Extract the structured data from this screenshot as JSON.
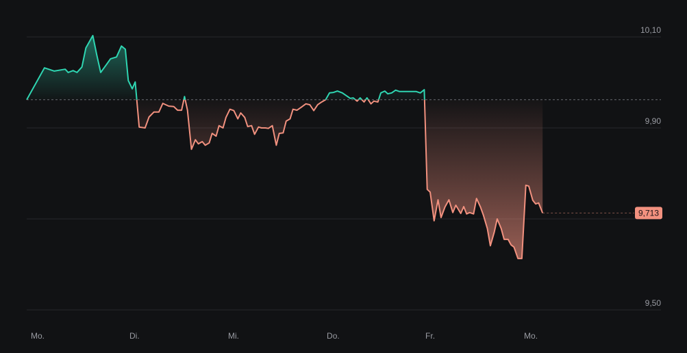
{
  "chart_data": {
    "type": "line",
    "x": [
      0,
      0.18,
      0.28,
      0.39,
      0.42,
      0.47,
      0.51,
      0.56,
      0.6,
      0.67,
      0.71,
      0.75,
      0.81,
      0.85,
      0.91,
      0.96,
      1.0,
      1.03,
      1.07,
      1.1,
      1.14,
      1.2,
      1.24,
      1.29,
      1.34,
      1.38,
      1.44,
      1.49,
      1.53,
      1.57,
      1.6,
      1.63,
      1.67,
      1.71,
      1.74,
      1.78,
      1.81,
      1.85,
      1.88,
      1.92,
      1.95,
      1.99,
      2.02,
      2.06,
      2.1,
      2.14,
      2.17,
      2.21,
      2.24,
      2.28,
      2.31,
      2.35,
      2.38,
      2.42,
      2.45,
      2.49,
      2.53,
      2.56,
      2.6,
      2.63,
      2.67,
      2.7,
      2.74,
      2.78,
      2.83,
      2.87,
      2.91,
      2.95,
      2.99,
      3.03,
      3.07,
      3.11,
      3.15,
      3.2,
      3.24,
      3.28,
      3.31,
      3.35,
      3.38,
      3.42,
      3.45,
      3.49,
      3.52,
      3.56,
      3.59,
      3.63,
      3.66,
      3.7,
      3.74,
      3.78,
      3.83,
      3.87,
      3.91,
      3.95,
      3.99,
      4.03,
      4.06,
      4.09,
      4.13,
      4.17,
      4.2,
      4.24,
      4.28,
      4.32,
      4.35,
      4.4,
      4.43,
      4.46,
      4.49,
      4.53,
      4.56,
      4.6,
      4.63,
      4.67,
      4.7,
      4.74,
      4.77,
      4.81,
      4.84,
      4.88,
      4.91,
      4.94,
      4.98,
      5.02,
      5.06,
      5.09,
      5.13,
      5.16,
      5.19,
      5.23
    ],
    "series": [
      {
        "values": [
          9.962,
          10.032,
          10.025,
          10.029,
          10.022,
          10.026,
          10.022,
          10.034,
          10.076,
          10.103,
          10.061,
          10.022,
          10.04,
          10.052,
          10.056,
          10.08,
          10.073,
          10.004,
          9.986,
          10.001,
          9.902,
          9.9,
          9.924,
          9.935,
          9.935,
          9.954,
          9.948,
          9.947,
          9.939,
          9.939,
          9.969,
          9.939,
          9.853,
          9.874,
          9.865,
          9.87,
          9.862,
          9.867,
          9.888,
          9.882,
          9.905,
          9.9,
          9.923,
          9.941,
          9.938,
          9.92,
          9.933,
          9.923,
          9.903,
          9.905,
          9.886,
          9.902,
          9.9,
          9.9,
          9.899,
          9.905,
          9.862,
          9.888,
          9.889,
          9.915,
          9.92,
          9.941,
          9.939,
          9.945,
          9.953,
          9.951,
          9.938,
          9.951,
          9.957,
          9.962,
          9.977,
          9.978,
          9.981,
          9.977,
          9.971,
          9.965,
          9.966,
          9.959,
          9.966,
          9.957,
          9.966,
          9.953,
          9.959,
          9.957,
          9.977,
          9.981,
          9.975,
          9.977,
          9.983,
          9.98,
          9.98,
          9.98,
          9.98,
          9.98,
          9.977,
          9.984,
          9.765,
          9.759,
          9.696,
          9.742,
          9.703,
          9.726,
          9.742,
          9.714,
          9.73,
          9.712,
          9.727,
          9.711,
          9.714,
          9.711,
          9.745,
          9.726,
          9.708,
          9.679,
          9.641,
          9.671,
          9.7,
          9.679,
          9.655,
          9.655,
          9.643,
          9.638,
          9.613,
          9.613,
          9.774,
          9.772,
          9.741,
          9.733,
          9.735,
          9.713
        ]
      }
    ],
    "up_color": "#2fd6b2",
    "down_color": "#f2917f",
    "reference": 9.962,
    "price_label": {
      "value": 9.713,
      "label": "9,713"
    },
    "xlim": [
      0,
      6.43
    ],
    "xticks": [
      {
        "value": 0,
        "label": "Mo."
      },
      {
        "value": 1,
        "label": "Di."
      },
      {
        "value": 2,
        "label": "Mi."
      },
      {
        "value": 3,
        "label": "Do."
      },
      {
        "value": 4,
        "label": "Fr."
      },
      {
        "value": 5,
        "label": "Mo."
      }
    ],
    "ylim": [
      9.5,
      10.1
    ],
    "yticks": [
      {
        "value": 10.1,
        "label": "10,10"
      },
      {
        "value": 9.9,
        "label": "9,90"
      },
      {
        "value": 9.5,
        "label": "9,50"
      }
    ],
    "ygrid": [
      10.1,
      9.9,
      9.7,
      9.5
    ],
    "grid": true
  }
}
